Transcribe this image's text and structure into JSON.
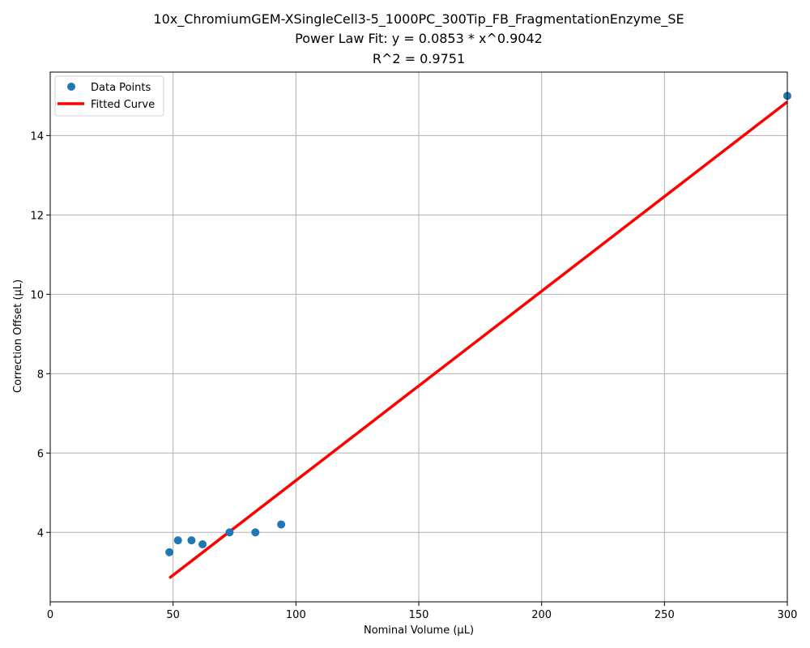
{
  "chart_data": {
    "type": "scatter",
    "title_lines": [
      "10x_ChromiumGEM-XSingleCell3-5_1000PC_300Tip_FB_FragmentationEnzyme_SE",
      "Power Law Fit: y = 0.0853 * x^0.9042",
      "R^2 = 0.9751"
    ],
    "xlabel": "Nominal Volume (µL)",
    "ylabel": "Correction Offset (µL)",
    "xlim": [
      0,
      300
    ],
    "ylim": [
      2.25,
      15.6
    ],
    "x_ticks": [
      0,
      50,
      100,
      150,
      200,
      250,
      300
    ],
    "x_tick_labels": [
      "0",
      "50",
      "100",
      "150",
      "200",
      "250",
      "300"
    ],
    "y_ticks": [
      4,
      6,
      8,
      10,
      12,
      14
    ],
    "y_tick_labels": [
      "4",
      "6",
      "8",
      "10",
      "12",
      "14"
    ],
    "grid": true,
    "legend_position": "top-left",
    "series": [
      {
        "name": "Data Points",
        "kind": "scatter",
        "color": "#1f77b4",
        "x": [
          48.5,
          52,
          57.5,
          62,
          73,
          83.5,
          94,
          300
        ],
        "y": [
          3.5,
          3.8,
          3.8,
          3.7,
          4.0,
          4.0,
          4.2,
          15.0
        ]
      },
      {
        "name": "Fitted Curve",
        "kind": "line",
        "color": "#ff0000",
        "x": [
          48.5,
          300
        ],
        "y": [
          2.85,
          14.85
        ]
      }
    ]
  }
}
